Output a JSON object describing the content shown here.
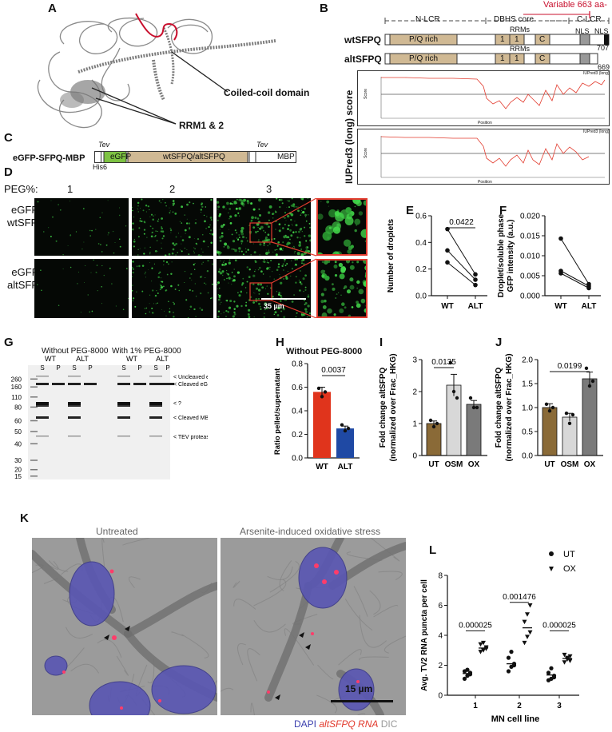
{
  "panels": {
    "A": {
      "label": "A",
      "coiled_coil": "Coiled-coil domain",
      "rrm": "RRM1 & 2"
    },
    "B": {
      "label": "B",
      "variable": "Variable 663 aa-",
      "regions": [
        "N-LCR",
        "DBHS core",
        "C-LCR"
      ],
      "nls": "NLS",
      "rrms": "RRMs",
      "wt_name": "wtSFPQ",
      "alt_name": "altSFPQ",
      "pq": "P/Q rich",
      "rrm1": "1",
      "rrm2": "1",
      "c": "C",
      "wt_len": "707",
      "alt_len": "669",
      "yaxis": "IUPred3 (long) score",
      "legend": "IUPred3 (long)",
      "score": "Score",
      "position": "Position"
    },
    "C": {
      "label": "C",
      "construct": "eGFP-SFPQ-MBP",
      "tev": "Tev",
      "his": "His6",
      "egfp": "eGFP",
      "mid": "wtSFPQ/altSFPQ",
      "mbp": "MBP"
    },
    "D": {
      "label": "D",
      "peg": "PEG%:",
      "conc": [
        "1",
        "2",
        "3"
      ],
      "rows": [
        "eGFP-\nwtSFPQ",
        "eGFP-\naltSFPQ"
      ],
      "scale": "35 µm"
    },
    "E": {
      "label": "E",
      "ylabel": "Number of droplets",
      "pval": "0.0422",
      "xticks": [
        "WT",
        "ALT"
      ],
      "yticks": [
        "0.0",
        "0.2",
        "0.4",
        "0.6"
      ]
    },
    "F": {
      "label": "F",
      "ylabel": "Droplet/soluble phase\nGFP intensity (a.u.)",
      "xticks": [
        "WT",
        "ALT"
      ],
      "yticks": [
        "0.000",
        "0.005",
        "0.010",
        "0.015",
        "0.020"
      ]
    },
    "G": {
      "label": "G",
      "without": "Without PEG-8000",
      "with": "With 1% PEG-8000",
      "wt": "WT",
      "alt": "ALT",
      "s": "S",
      "p": "P",
      "mw": [
        "260",
        "160",
        "110",
        "80",
        "60",
        "50",
        "40",
        "30",
        "20",
        "15"
      ],
      "bands": [
        "< Uncleaved eGFP-SFPQ-MBP",
        "< Cleaved eGFP-SFPQ",
        "< ?",
        "< Cleaved MBP",
        "< TEV protease"
      ]
    },
    "H": {
      "label": "H",
      "title": "Without PEG-8000",
      "ylabel": "Ratio pellet/supernatant",
      "pval": "0.0037",
      "xticks": [
        "WT",
        "ALT"
      ],
      "yticks": [
        "0.0",
        "0.2",
        "0.4",
        "0.6",
        "0.8"
      ]
    },
    "I": {
      "label": "I",
      "ylabel1": "Fold change altSFPQ",
      "ylabel2": "(normalized over Frac_HKG)",
      "pval": "0.0135",
      "xticks": [
        "UT",
        "OSM",
        "OX"
      ],
      "yticks": [
        "0",
        "1",
        "2",
        "3"
      ]
    },
    "J": {
      "label": "J",
      "ylabel1": "Fold change altSFPQ",
      "ylabel2": "(normalized over Frac_HKG)",
      "pval": "0.0199",
      "xticks": [
        "UT",
        "OSM",
        "OX"
      ],
      "yticks": [
        "0.0",
        "0.5",
        "1.0",
        "1.5",
        "2.0"
      ]
    },
    "K": {
      "label": "K",
      "untreated": "Untreated",
      "treated": "Arsenite-induced oxidative stress",
      "scale": "15 µm",
      "dapi": "DAPI",
      "rna": "altSFPQ RNA",
      "dic": "DIC"
    },
    "L": {
      "label": "L",
      "ylabel": "Avg. TV2 RNA puncta per cell",
      "xlabel": "MN cell line",
      "legend": [
        "UT",
        "OX"
      ],
      "xticks": [
        "1",
        "2",
        "3"
      ],
      "yticks": [
        "0",
        "2",
        "4",
        "6",
        "8"
      ],
      "pvals": [
        "0.000025",
        "0.001476",
        "0.000025"
      ]
    }
  },
  "chart_data": [
    {
      "id": "E",
      "type": "line",
      "ylabel": "Number of droplets",
      "categories": [
        "WT",
        "ALT"
      ],
      "ylim": [
        0,
        0.6
      ],
      "series": [
        {
          "values": [
            0.5,
            0.16
          ]
        },
        {
          "values": [
            0.34,
            0.12
          ]
        },
        {
          "values": [
            0.25,
            0.08
          ]
        }
      ]
    },
    {
      "id": "F",
      "type": "line",
      "ylabel": "Droplet/soluble phase GFP intensity (a.u.)",
      "categories": [
        "WT",
        "ALT"
      ],
      "ylim": [
        0,
        0.02
      ],
      "series": [
        {
          "values": [
            0.0143,
            0.0029
          ]
        },
        {
          "values": [
            0.0062,
            0.0024
          ]
        },
        {
          "values": [
            0.0056,
            0.0019
          ]
        }
      ]
    },
    {
      "id": "H",
      "type": "bar",
      "title": "Without PEG-8000",
      "ylabel": "Ratio pellet/supernatant",
      "categories": [
        "WT",
        "ALT"
      ],
      "values": [
        0.56,
        0.25
      ],
      "errors": [
        0.04,
        0.02
      ],
      "ylim": [
        0,
        0.8
      ],
      "points": [
        [
          0.59,
          0.52,
          0.56
        ],
        [
          0.28,
          0.23,
          0.25
        ]
      ],
      "colors": [
        "#e0341c",
        "#1f49a4"
      ]
    },
    {
      "id": "I",
      "type": "bar",
      "ylabel": "Fold change altSFPQ (normalized over Frac_HKG)",
      "categories": [
        "UT",
        "OSM",
        "OX"
      ],
      "values": [
        1.0,
        2.2,
        1.6
      ],
      "errors": [
        0.08,
        0.34,
        0.12
      ],
      "ylim": [
        0,
        3
      ],
      "points": [
        [
          1.1,
          0.9,
          1.0
        ],
        [
          2.9,
          2.0,
          1.8
        ],
        [
          1.8,
          1.5,
          1.5
        ]
      ],
      "colors": [
        "#8a6a37",
        "#d8d8d8",
        "#7a7a7a"
      ]
    },
    {
      "id": "J",
      "type": "bar",
      "ylabel": "Fold change altSFPQ (normalized over Frac_HKG)",
      "categories": [
        "UT",
        "OSM",
        "OX"
      ],
      "values": [
        1.0,
        0.8,
        1.6
      ],
      "errors": [
        0.08,
        0.08,
        0.14
      ],
      "ylim": [
        0,
        2.0
      ],
      "points": [
        [
          1.07,
          0.93,
          1.0
        ],
        [
          0.88,
          0.67,
          0.85
        ],
        [
          1.82,
          1.45,
          1.55
        ]
      ],
      "colors": [
        "#8a6a37",
        "#d8d8d8",
        "#7a7a7a"
      ]
    },
    {
      "id": "L",
      "type": "scatter",
      "ylabel": "Avg. TV2 RNA puncta per cell",
      "xlabel": "MN cell line",
      "categories": [
        "1",
        "2",
        "3"
      ],
      "ylim": [
        0,
        8
      ],
      "series": [
        {
          "name": "UT",
          "values": [
            [
              1.1,
              1.3,
              1.4,
              1.6,
              1.7,
              1.5
            ],
            [
              1.6,
              1.9,
              2.1,
              2.5,
              2.9,
              2.0
            ],
            [
              1.0,
              1.1,
              1.3,
              1.5,
              1.8,
              1.2
            ]
          ],
          "means": [
            1.45,
            2.1,
            1.35
          ]
        },
        {
          "name": "OX",
          "values": [
            [
              2.9,
              3.0,
              3.2,
              3.4,
              3.5,
              3.1
            ],
            [
              3.5,
              3.9,
              4.2,
              4.9,
              5.4,
              6.0
            ],
            [
              2.2,
              2.4,
              2.6,
              2.7,
              2.5,
              2.3
            ]
          ],
          "means": [
            3.15,
            4.5,
            2.45
          ]
        }
      ]
    }
  ]
}
